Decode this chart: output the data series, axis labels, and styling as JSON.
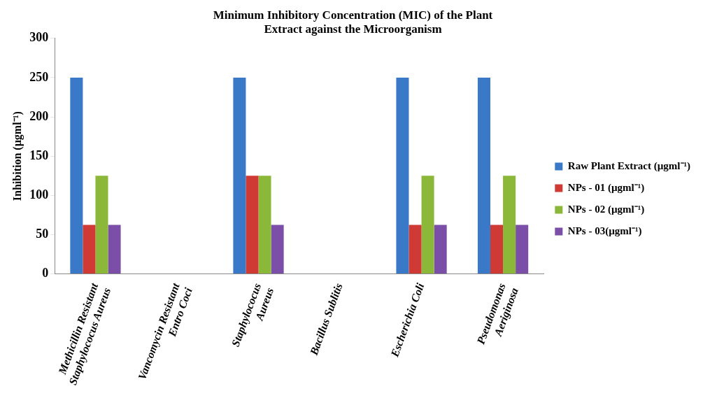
{
  "chart_data": {
    "type": "bar",
    "title": "Minimum Inhibitory Concentration (MIC) of the Plant\nExtract against the Microorganism",
    "ylabel": "Inhibition (µgml⁻¹)",
    "categories": [
      "Methicillin Resistant\nStaphylococus Aureus",
      "Vancomycin Resistant\nEntro Coci",
      "Staphylococus\nAureus",
      "Bacillus Sublitis",
      "Escherichia Coli",
      "Pseudomonas\nAeriginosa"
    ],
    "series": [
      {
        "name": "Raw Plant Extract (µgml⁻¹)",
        "color": "#3a78c8",
        "values": [
          250,
          null,
          250,
          null,
          250,
          250
        ]
      },
      {
        "name": "NPs - 01 (µgml⁻¹)",
        "color": "#d03a34",
        "values": [
          62.5,
          null,
          125,
          null,
          62.5,
          62.5
        ]
      },
      {
        "name": "NPs - 02 (µgml⁻¹)",
        "color": "#8cb83a",
        "values": [
          125,
          null,
          125,
          null,
          125,
          125
        ]
      },
      {
        "name": "NPs - 03(µgml⁻¹)",
        "color": "#7b4fa8",
        "values": [
          62.5,
          null,
          62.5,
          null,
          62.5,
          62.5
        ]
      }
    ],
    "ylim": [
      0,
      300
    ],
    "yticks": [
      0,
      50,
      100,
      150,
      200,
      250,
      300
    ],
    "grid": false,
    "legend": "right"
  }
}
